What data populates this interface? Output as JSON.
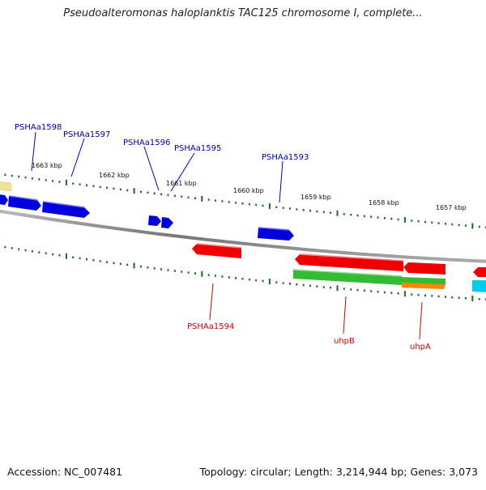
{
  "title": "Pseudoalteromonas haloplanktis TAC125 chromosome I, complete...",
  "footer": {
    "accession": "Accession: NC_007481",
    "summary": "Topology: circular; Length: 3,214,944 bp; Genes: 3,073"
  },
  "kbp_labels": [
    "1663 kbp",
    "1662 kbp",
    "1661 kbp",
    "1660 kbp",
    "1659 kbp",
    "1658 kbp",
    "1657 kbp"
  ],
  "gene_labels": [
    "PSHAa1598",
    "PSHAa1597",
    "PSHAa1596",
    "PSHAa1595",
    "PSHAa1593",
    "PSHAa1594",
    "uhpB",
    "uhpA"
  ],
  "colors": {
    "blue": "#0000dd",
    "red": "#ee0000",
    "green": "#33bb33",
    "orange": "#ff8800",
    "cyan": "#00ccee",
    "yellow": "#f2e29a",
    "tick": "#226622",
    "backbone": "#888888",
    "label_blue": "#0000aa",
    "label_red": "#cc0000"
  }
}
